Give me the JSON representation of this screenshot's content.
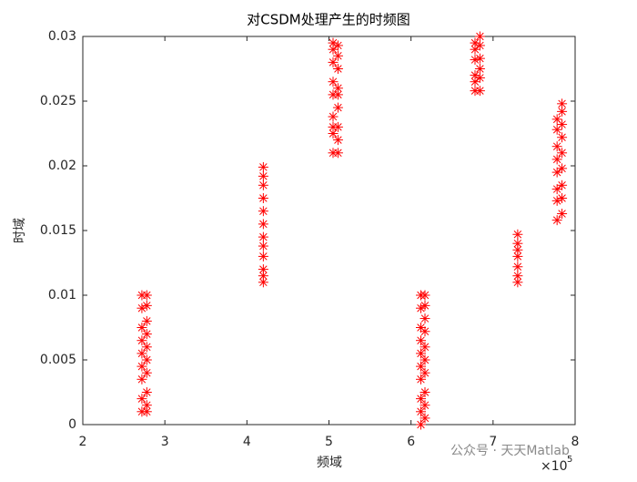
{
  "chart_data": {
    "type": "scatter",
    "title": "对CSDM处理产生的时频图",
    "x_label": "频域",
    "y_label": "时域",
    "x_scale_label": {
      "base": "×10",
      "exponent": "5"
    },
    "watermark": "公众号 · 天天Matlab",
    "color": "#ff0000",
    "xlim": [
      200000,
      800000
    ],
    "xticks": [
      {
        "value": 200000,
        "label": "2"
      },
      {
        "value": 300000,
        "label": "3"
      },
      {
        "value": 400000,
        "label": "4"
      },
      {
        "value": 500000,
        "label": "5"
      },
      {
        "value": 600000,
        "label": "6"
      },
      {
        "value": 700000,
        "label": "7"
      },
      {
        "value": 800000,
        "label": "8"
      }
    ],
    "ylim": [
      0,
      0.03
    ],
    "yticks": [
      0,
      0.005,
      0.01,
      0.015,
      0.02,
      0.025,
      0.03
    ],
    "x": [
      272000,
      272000,
      272000,
      272000,
      272000,
      272000,
      272000,
      272000,
      272000,
      278000,
      278000,
      278000,
      278000,
      278000,
      278000,
      278000,
      278000,
      278000,
      278000,
      420000,
      420000,
      420000,
      420000,
      420000,
      420000,
      420000,
      420000,
      420000,
      420000,
      420000,
      420000,
      505000,
      505000,
      505000,
      505000,
      505000,
      505000,
      505000,
      505000,
      505000,
      511000,
      511000,
      511000,
      511000,
      511000,
      511000,
      511000,
      511000,
      511000,
      612000,
      612000,
      612000,
      612000,
      612000,
      612000,
      612000,
      612000,
      612000,
      612000,
      617000,
      617000,
      617000,
      617000,
      617000,
      617000,
      617000,
      617000,
      617000,
      617000,
      678000,
      678000,
      678000,
      678000,
      678000,
      678000,
      684000,
      684000,
      684000,
      684000,
      684000,
      684000,
      730000,
      730000,
      730000,
      730000,
      730000,
      730000,
      730000,
      778000,
      778000,
      778000,
      778000,
      778000,
      778000,
      778000,
      778000,
      784000,
      784000,
      784000,
      784000,
      784000,
      784000,
      784000,
      784000,
      784000
    ],
    "values": [
      0.001,
      0.002,
      0.0035,
      0.0045,
      0.0055,
      0.0065,
      0.0075,
      0.009,
      0.01,
      0.001,
      0.0015,
      0.0025,
      0.004,
      0.005,
      0.006,
      0.007,
      0.008,
      0.0092,
      0.01,
      0.011,
      0.0115,
      0.012,
      0.013,
      0.0138,
      0.0145,
      0.0155,
      0.0165,
      0.0175,
      0.0185,
      0.0192,
      0.0199,
      0.021,
      0.0225,
      0.023,
      0.0238,
      0.0255,
      0.0265,
      0.028,
      0.029,
      0.0295,
      0.021,
      0.022,
      0.023,
      0.0245,
      0.0255,
      0.026,
      0.0275,
      0.0285,
      0.0293,
      0,
      0.001,
      0.002,
      0.0035,
      0.0045,
      0.0055,
      0.0065,
      0.0075,
      0.009,
      0.01,
      0.0005,
      0.0015,
      0.0025,
      0.004,
      0.005,
      0.006,
      0.0072,
      0.0082,
      0.0092,
      0.01,
      0.0258,
      0.0265,
      0.027,
      0.0282,
      0.029,
      0.0295,
      0.0258,
      0.0268,
      0.0275,
      0.0283,
      0.0293,
      0.03,
      0.011,
      0.0115,
      0.0122,
      0.013,
      0.0135,
      0.014,
      0.0147,
      0.0158,
      0.0173,
      0.0182,
      0.0195,
      0.0205,
      0.0215,
      0.0228,
      0.0236,
      0.0163,
      0.0175,
      0.0185,
      0.0198,
      0.021,
      0.0222,
      0.0232,
      0.0242,
      0.0248
    ]
  }
}
